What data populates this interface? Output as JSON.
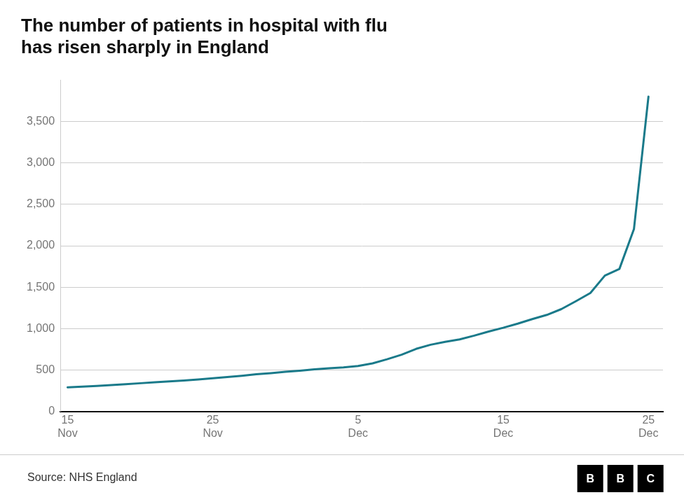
{
  "chart_data": {
    "type": "line",
    "title": [
      "The number of patients in hospital with flu",
      "has risen sharply in England"
    ],
    "annotations": [
      "Source: NHS England",
      "B",
      "B",
      "C"
    ],
    "x": [
      0,
      1,
      2,
      3,
      4,
      5,
      6,
      7,
      8,
      9,
      10,
      11,
      12,
      13,
      14,
      15,
      16,
      17,
      18,
      19,
      20,
      21,
      22,
      23,
      24,
      25,
      26,
      27,
      28,
      29,
      30,
      31,
      32,
      33,
      34,
      35,
      36,
      37,
      38,
      39,
      40
    ],
    "values": [
      290,
      298,
      308,
      318,
      328,
      340,
      352,
      362,
      372,
      385,
      400,
      415,
      430,
      448,
      462,
      478,
      492,
      508,
      520,
      532,
      548,
      580,
      630,
      685,
      755,
      805,
      840,
      870,
      915,
      965,
      1010,
      1060,
      1115,
      1165,
      1235,
      1330,
      1430,
      1640,
      1720,
      2200,
      3800
    ],
    "color": "#1a7a8a",
    "xlim": [
      -0.5,
      41
    ],
    "xticks": [
      {
        "value": 0,
        "label": [
          "15",
          "Nov"
        ]
      },
      {
        "value": 10,
        "label": [
          "25",
          "Nov"
        ]
      },
      {
        "value": 20,
        "label": [
          "5",
          "Dec"
        ]
      },
      {
        "value": 30,
        "label": [
          "15",
          "Dec"
        ]
      },
      {
        "value": 40,
        "label": [
          "25",
          "Dec"
        ]
      }
    ],
    "ylim": [
      0,
      4000
    ],
    "yticks": [
      0,
      500,
      {
        "value": 1000,
        "label": "1,000"
      },
      {
        "value": 1500,
        "label": "1,500"
      },
      {
        "value": 2000,
        "label": "2,000"
      },
      {
        "value": 2500,
        "label": "2,500"
      },
      {
        "value": 3000,
        "label": "3,000"
      },
      {
        "value": 3500,
        "label": "3,500"
      }
    ],
    "grid": "y",
    "marker": "none"
  }
}
